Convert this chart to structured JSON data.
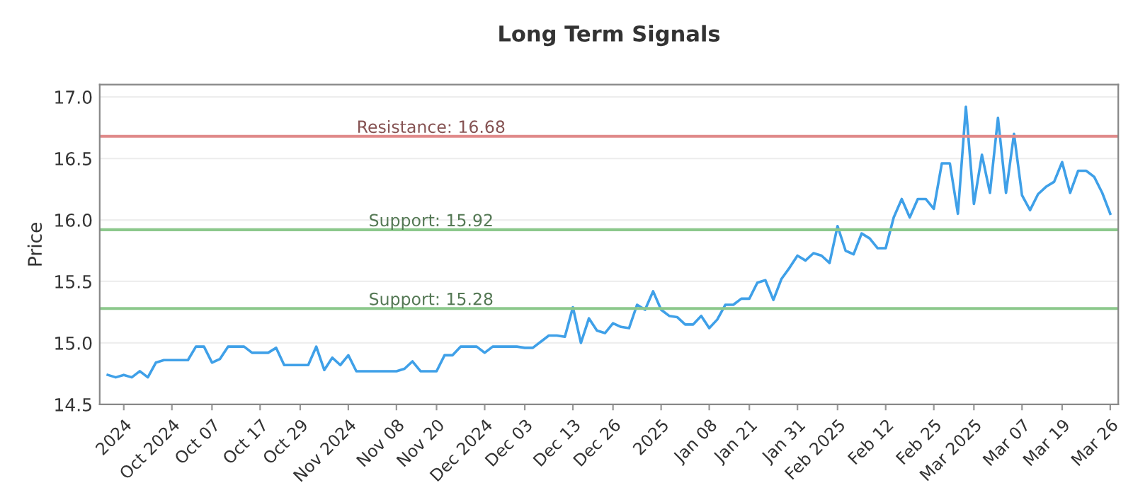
{
  "chart_data": {
    "type": "line",
    "title": "Long Term Signals",
    "ylabel": "Price",
    "categories": [
      null,
      null,
      "2024",
      null,
      null,
      null,
      null,
      null,
      "Oct 2024",
      null,
      null,
      null,
      null,
      "Oct 07",
      null,
      null,
      null,
      null,
      null,
      "Oct 17",
      null,
      null,
      null,
      null,
      "Oct 29",
      null,
      null,
      null,
      null,
      null,
      "Nov 2024",
      null,
      null,
      null,
      null,
      null,
      "Nov 08",
      null,
      null,
      null,
      null,
      "Nov 20",
      null,
      null,
      null,
      null,
      null,
      "Dec 2024",
      null,
      null,
      null,
      null,
      "Dec 03",
      null,
      null,
      null,
      null,
      null,
      "Dec 13",
      null,
      null,
      null,
      null,
      "Dec 26",
      null,
      null,
      null,
      null,
      null,
      "2025",
      null,
      null,
      null,
      null,
      null,
      "Jan 08",
      null,
      null,
      null,
      null,
      "Jan 21",
      null,
      null,
      null,
      null,
      null,
      "Jan 31",
      null,
      null,
      null,
      null,
      "Feb 2025",
      null,
      null,
      null,
      null,
      null,
      "Feb 12",
      null,
      null,
      null,
      null,
      null,
      "Feb 25",
      null,
      null,
      null,
      null,
      "Mar 2025",
      null,
      null,
      null,
      null,
      null,
      "Mar 07",
      null,
      null,
      null,
      null,
      "Mar 19",
      null,
      null,
      null,
      null,
      null,
      "Mar 26"
    ],
    "series": [
      {
        "color": "#3fa0e8",
        "values": [
          14.74,
          14.72,
          14.74,
          14.72,
          14.77,
          14.72,
          14.84,
          14.86,
          14.86,
          14.86,
          14.86,
          14.97,
          14.97,
          14.84,
          14.87,
          14.97,
          14.97,
          14.97,
          14.92,
          14.92,
          14.92,
          14.96,
          14.82,
          14.82,
          14.82,
          14.82,
          14.97,
          14.78,
          14.88,
          14.82,
          14.9,
          14.77,
          14.77,
          14.77,
          14.77,
          14.77,
          14.77,
          14.79,
          14.85,
          14.77,
          14.77,
          14.77,
          14.9,
          14.9,
          14.97,
          14.97,
          14.97,
          14.92,
          14.97,
          14.97,
          14.97,
          14.97,
          14.96,
          14.96,
          15.01,
          15.06,
          15.06,
          15.05,
          15.29,
          15.0,
          15.2,
          15.1,
          15.08,
          15.16,
          15.13,
          15.12,
          15.31,
          15.27,
          15.42,
          15.27,
          15.22,
          15.21,
          15.15,
          15.15,
          15.22,
          15.12,
          15.19,
          15.31,
          15.31,
          15.36,
          15.36,
          15.49,
          15.51,
          15.35,
          15.52,
          15.61,
          15.71,
          15.67,
          15.73,
          15.71,
          15.65,
          15.95,
          15.75,
          15.72,
          15.89,
          15.85,
          15.77,
          15.77,
          16.02,
          16.17,
          16.02,
          16.17,
          16.17,
          16.09,
          16.46,
          16.46,
          16.05,
          16.92,
          16.13,
          16.53,
          16.22,
          16.83,
          16.22,
          16.7,
          16.2,
          16.08,
          16.21,
          16.27,
          16.31,
          16.47,
          16.22,
          16.4,
          16.4,
          16.35,
          16.22,
          16.05
        ]
      }
    ],
    "ylim": [
      14.5,
      17.1
    ],
    "yticks": [
      {
        "value": 14.5,
        "label": "14.5"
      },
      {
        "value": 15.0,
        "label": "15.0"
      },
      {
        "value": 15.5,
        "label": "15.5"
      },
      {
        "value": 16.0,
        "label": "16.0"
      },
      {
        "value": 16.5,
        "label": "16.5"
      },
      {
        "value": 17.0,
        "label": "17.0"
      }
    ],
    "ref_lines": [
      {
        "axis": "y",
        "value": 16.68,
        "label": "Resistance: 16.68",
        "color": "#e08a8a"
      },
      {
        "axis": "y",
        "value": 15.92,
        "label": "Support: 15.92",
        "color": "#8cc88c"
      },
      {
        "axis": "y",
        "value": 15.28,
        "label": "Support: 15.28",
        "color": "#8cc88c"
      }
    ],
    "grid": "y",
    "legend": false,
    "marker": "none",
    "line_style": "solid"
  }
}
